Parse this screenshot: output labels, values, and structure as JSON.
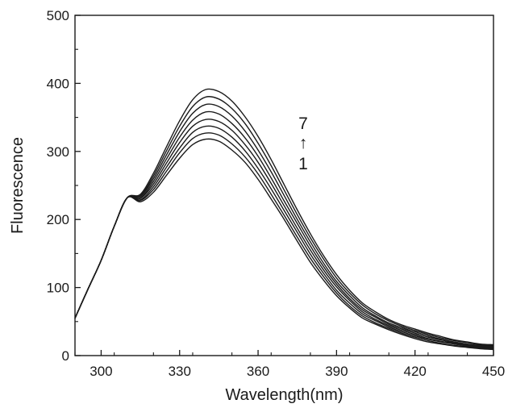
{
  "chart_data": {
    "type": "line",
    "title": "",
    "xlabel": "Wavelength(nm)",
    "ylabel": "Fluorescence",
    "xlim": [
      290,
      450
    ],
    "ylim": [
      0,
      500
    ],
    "x_ticks": [
      300,
      330,
      360,
      390,
      420,
      450
    ],
    "y_ticks": [
      0,
      100,
      200,
      300,
      400,
      500
    ],
    "grid": false,
    "legend": "none",
    "line_color": "#1a1a1a",
    "annotation": {
      "top": "7",
      "arrow": "↑",
      "bottom": "1"
    },
    "x": [
      290,
      295,
      300,
      305,
      310,
      315,
      320,
      325,
      330,
      335,
      340,
      345,
      350,
      355,
      360,
      365,
      370,
      375,
      380,
      385,
      390,
      395,
      400,
      405,
      410,
      415,
      420,
      425,
      430,
      435,
      440,
      445,
      450
    ],
    "series": [
      {
        "values": [
          55,
          98,
          140,
          190,
          232,
          226,
          240,
          265,
          290,
          310,
          318,
          315,
          302,
          284,
          259,
          230,
          200,
          168,
          137,
          111,
          88,
          70,
          55,
          46,
          38,
          31,
          25,
          20,
          17,
          14,
          12,
          10,
          9
        ]
      },
      {
        "values": [
          55,
          98,
          140,
          190,
          232,
          228,
          244,
          271,
          298,
          319,
          327,
          324,
          311,
          292,
          267,
          237,
          206,
          174,
          143,
          116,
          92,
          73,
          58,
          48,
          40,
          33,
          27,
          22,
          18,
          15,
          13,
          11,
          10
        ]
      },
      {
        "values": [
          55,
          98,
          140,
          190,
          232,
          229,
          248,
          277,
          305,
          328,
          337,
          334,
          321,
          301,
          275,
          245,
          213,
          181,
          149,
          121,
          96,
          77,
          61,
          51,
          42,
          35,
          29,
          24,
          20,
          17,
          14,
          12,
          11
        ]
      },
      {
        "values": [
          55,
          98,
          140,
          190,
          232,
          231,
          252,
          283,
          313,
          337,
          347,
          344,
          331,
          310,
          284,
          253,
          220,
          187,
          155,
          126,
          101,
          81,
          64,
          53,
          44,
          37,
          31,
          25,
          21,
          18,
          15,
          13,
          12
        ]
      },
      {
        "values": [
          55,
          98,
          140,
          190,
          232,
          232,
          256,
          289,
          321,
          346,
          358,
          355,
          341,
          320,
          293,
          261,
          227,
          194,
          161,
          131,
          105,
          84,
          67,
          56,
          46,
          39,
          33,
          27,
          23,
          19,
          16,
          14,
          13
        ]
      },
      {
        "values": [
          55,
          98,
          140,
          190,
          232,
          234,
          260,
          295,
          329,
          356,
          369,
          366,
          352,
          330,
          302,
          270,
          235,
          200,
          167,
          136,
          109,
          88,
          70,
          58,
          48,
          41,
          35,
          29,
          24,
          20,
          17,
          15,
          14
        ]
      },
      {
        "values": [
          55,
          98,
          140,
          190,
          232,
          235,
          264,
          301,
          337,
          366,
          380,
          377,
          363,
          341,
          312,
          279,
          243,
          207,
          173,
          142,
          114,
          92,
          74,
          61,
          51,
          43,
          37,
          31,
          26,
          22,
          19,
          16,
          15
        ]
      },
      {
        "values": [
          55,
          98,
          140,
          190,
          232,
          237,
          268,
          307,
          345,
          376,
          391,
          388,
          374,
          351,
          322,
          288,
          251,
          214,
          179,
          147,
          119,
          96,
          77,
          64,
          53,
          45,
          39,
          33,
          28,
          23,
          20,
          17,
          16
        ]
      }
    ]
  }
}
